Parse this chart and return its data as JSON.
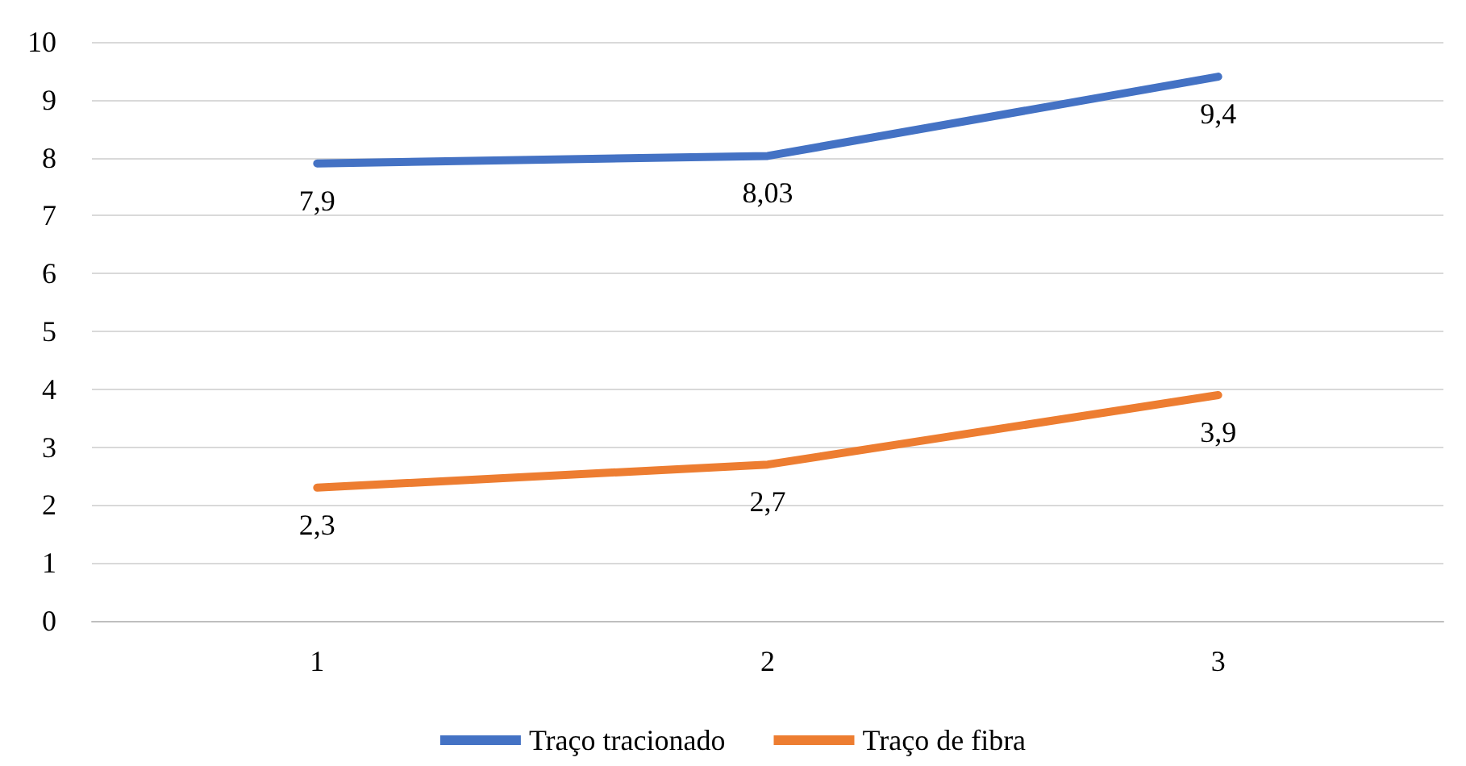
{
  "chart_data": {
    "type": "line",
    "categories": [
      "1",
      "2",
      "3"
    ],
    "series": [
      {
        "name": "Traço tracionado",
        "color": "#4472c4",
        "values": [
          7.9,
          8.03,
          9.4
        ],
        "value_labels": [
          "7,9",
          "8,03",
          "9,4"
        ]
      },
      {
        "name": "Traço de fibra",
        "color": "#ed7d31",
        "values": [
          2.3,
          2.7,
          3.9
        ],
        "value_labels": [
          "2,3",
          "2,7",
          "3,9"
        ]
      }
    ],
    "ylim": [
      0,
      10
    ],
    "yticks": [
      0,
      1,
      2,
      3,
      4,
      5,
      6,
      7,
      8,
      9,
      10
    ],
    "grid": "y",
    "legend": "bottom",
    "marker": "none",
    "line_style": "solid"
  }
}
